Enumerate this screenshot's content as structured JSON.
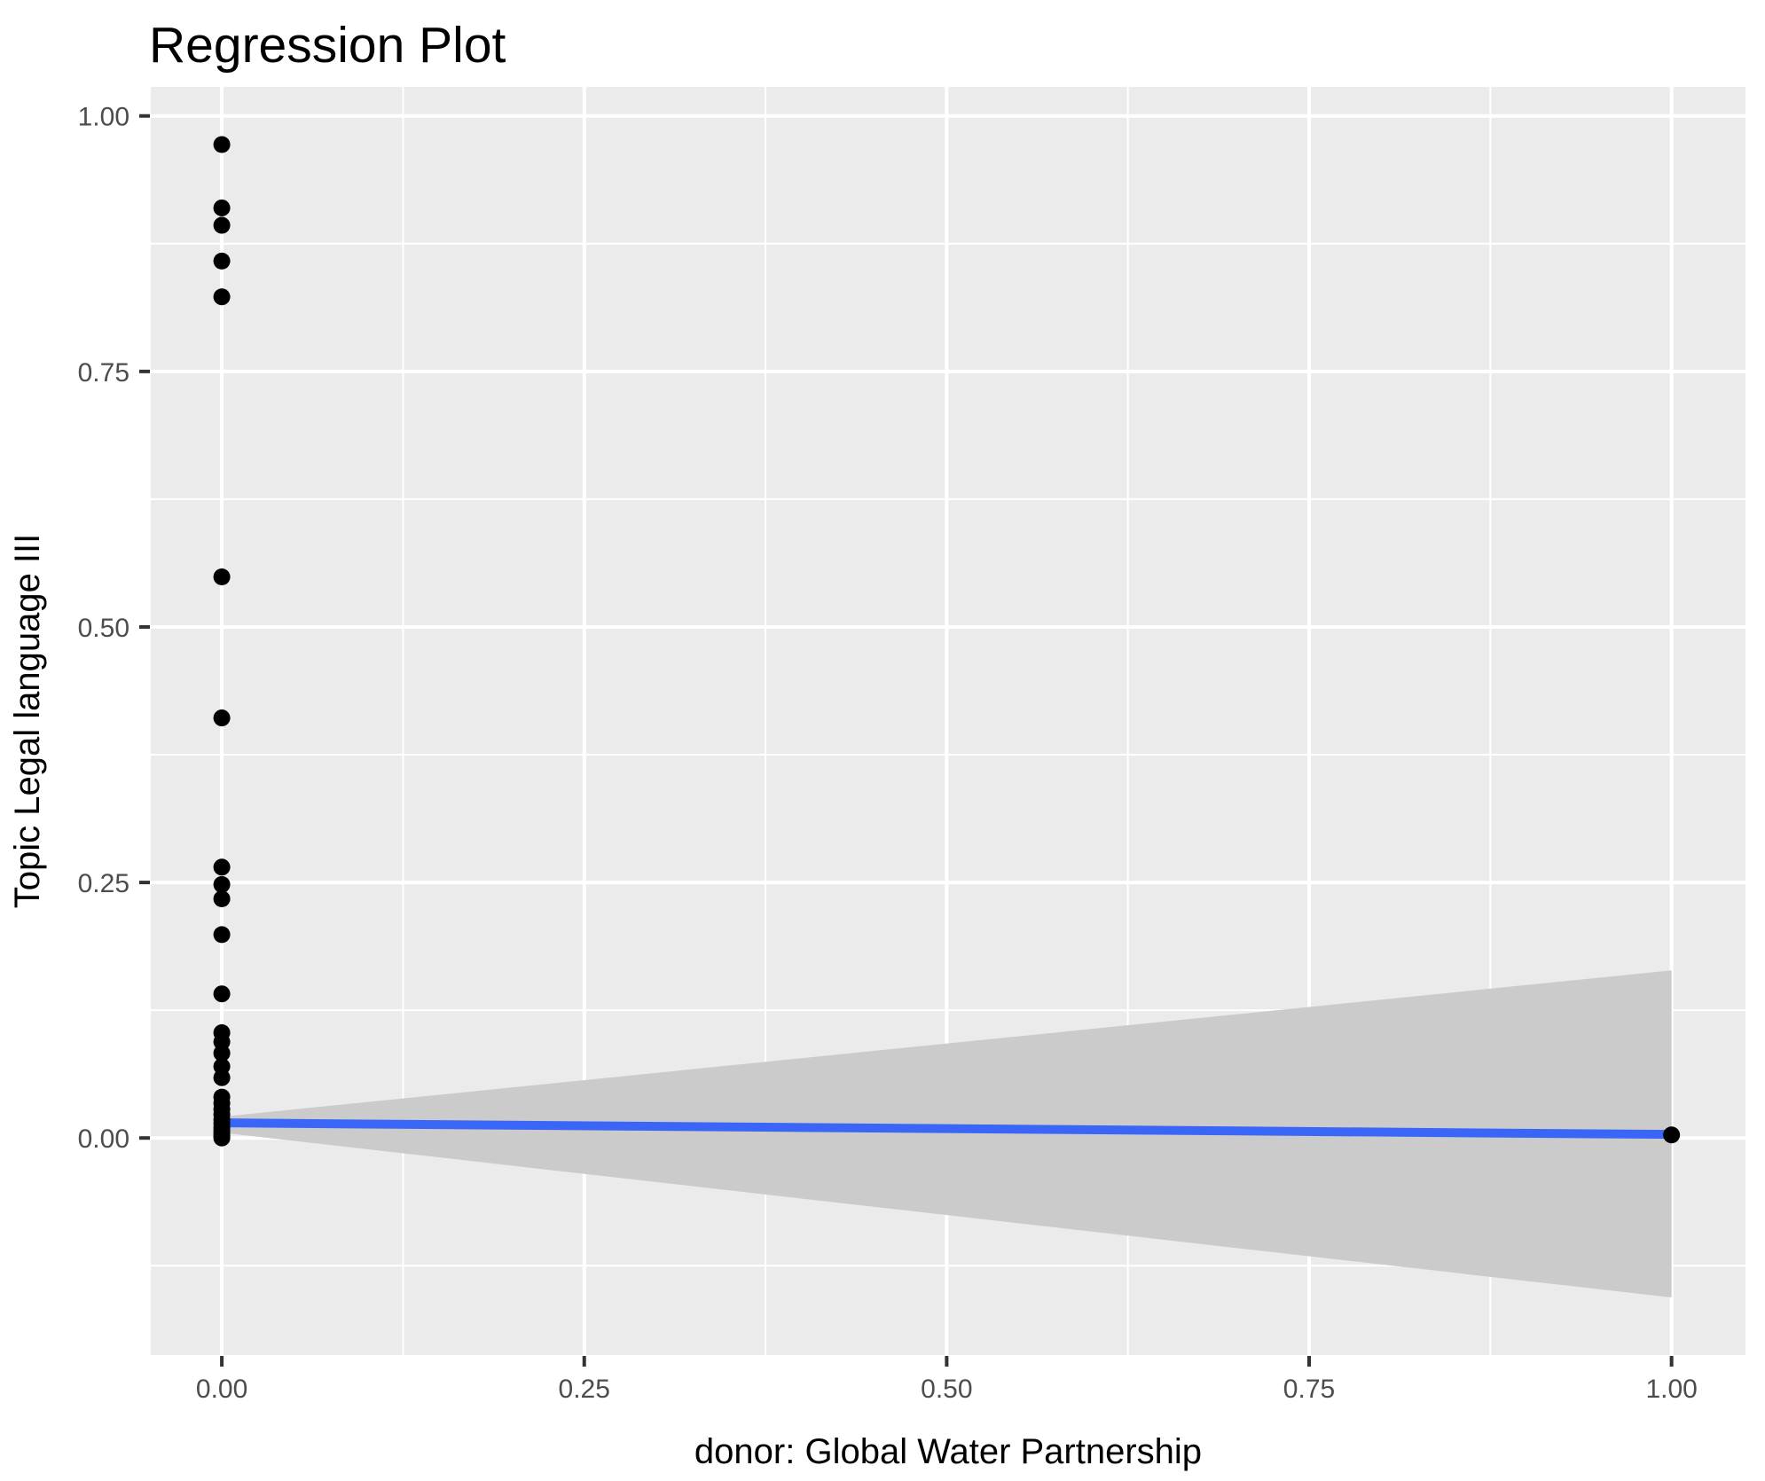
{
  "chart_data": {
    "type": "scatter",
    "title": "Regression Plot",
    "xlabel": "donor: Global Water Partnership",
    "ylabel": "Topic Legal language III",
    "xlim": [
      -0.049,
      1.051
    ],
    "ylim": [
      -0.2124,
      1.0284
    ],
    "x_major_ticks": [
      0,
      0.25,
      0.5,
      0.75,
      1.0
    ],
    "x_tick_labels": [
      "0.00",
      "0.25",
      "0.50",
      "0.75",
      "1.00"
    ],
    "y_major_ticks": [
      0,
      0.25,
      0.5,
      0.75,
      1.0
    ],
    "y_tick_labels": [
      "0.00",
      "0.25",
      "0.50",
      "0.75",
      "1.00"
    ],
    "x_minor_ticks": [
      0.125,
      0.375,
      0.625,
      0.875
    ],
    "y_minor_ticks": [
      -0.125,
      0.125,
      0.375,
      0.625,
      0.875
    ],
    "grid": "on",
    "legend_position": "none",
    "points": [
      [
        0,
        0.972
      ],
      [
        0,
        0.91
      ],
      [
        0,
        0.893
      ],
      [
        0,
        0.858
      ],
      [
        0,
        0.823
      ],
      [
        0,
        0.549
      ],
      [
        0,
        0.411
      ],
      [
        0,
        0.265
      ],
      [
        0,
        0.248
      ],
      [
        0,
        0.234
      ],
      [
        0,
        0.199
      ],
      [
        0,
        0.141
      ],
      [
        0,
        0.103
      ],
      [
        0,
        0.094
      ],
      [
        0,
        0.083
      ],
      [
        0,
        0.07
      ],
      [
        0,
        0.059
      ],
      [
        0,
        0.04
      ],
      [
        0,
        0.034
      ],
      [
        0,
        0.028
      ],
      [
        0,
        0.023
      ],
      [
        0,
        0.018
      ],
      [
        0,
        0.014
      ],
      [
        0,
        0.01
      ],
      [
        0,
        0.007
      ],
      [
        0,
        0.004
      ],
      [
        0,
        0.002
      ],
      [
        0,
        0.0
      ],
      [
        1,
        0.003
      ]
    ],
    "regression_line": {
      "x": [
        0,
        1
      ],
      "y": [
        0.0148,
        0.0035
      ]
    },
    "confidence_band": {
      "x": [
        0,
        1
      ],
      "upper": [
        0.0208,
        0.164
      ],
      "lower": [
        0.0052,
        -0.156
      ]
    },
    "colors": {
      "point": "#000000",
      "line": "#3A66F8",
      "band": "#CBCBCB",
      "panel_bg": "#EBEBEB",
      "grid": "#FFFFFF",
      "tick_label": "#4D4D4D",
      "tick_mark": "#333333",
      "title": "#000000"
    }
  }
}
